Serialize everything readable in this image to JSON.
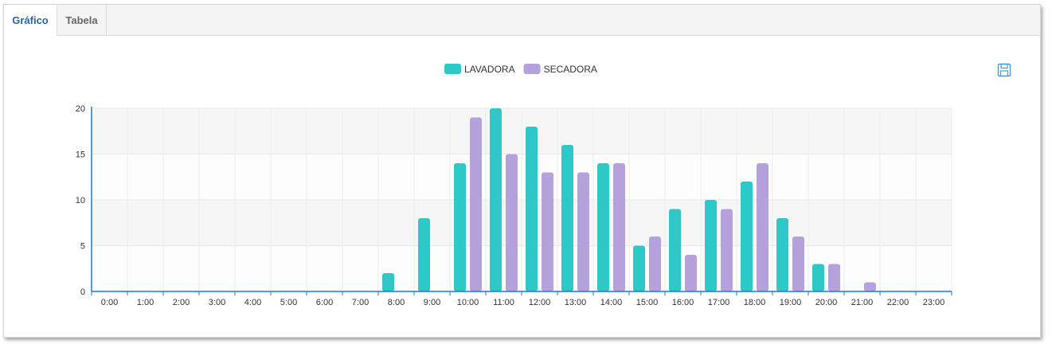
{
  "tabs": [
    {
      "label": "Gráfico"
    },
    {
      "label": "Tabela"
    }
  ],
  "toolbar": {
    "save_icon": "save-icon"
  },
  "colors": {
    "lavadora": "#2ec8c8",
    "secadora": "#b5a2dc",
    "axis": "#1e78c8",
    "accent": "#2a63a8"
  },
  "chart_data": {
    "type": "bar",
    "title": "",
    "xlabel": "",
    "ylabel": "",
    "ylim": [
      0,
      20
    ],
    "yticks": [
      0,
      5,
      10,
      15,
      20
    ],
    "grid": true,
    "legend_position": "top-center",
    "categories": [
      "0:00",
      "1:00",
      "2:00",
      "3:00",
      "4:00",
      "5:00",
      "6:00",
      "7:00",
      "8:00",
      "9:00",
      "10:00",
      "11:00",
      "12:00",
      "13:00",
      "14:00",
      "15:00",
      "16:00",
      "17:00",
      "18:00",
      "19:00",
      "20:00",
      "21:00",
      "22:00",
      "23:00"
    ],
    "series": [
      {
        "name": "LAVADORA",
        "color": "#2ec8c8",
        "values": [
          0,
          0,
          0,
          0,
          0,
          0,
          0,
          0,
          2,
          8,
          14,
          20,
          18,
          16,
          14,
          5,
          9,
          10,
          12,
          8,
          3,
          0,
          0,
          0
        ]
      },
      {
        "name": "SECADORA",
        "color": "#b5a2dc",
        "values": [
          0,
          0,
          0,
          0,
          0,
          0,
          0,
          0,
          0,
          0,
          19,
          15,
          13,
          13,
          14,
          6,
          4,
          9,
          14,
          6,
          3,
          1,
          0,
          0
        ]
      }
    ]
  }
}
